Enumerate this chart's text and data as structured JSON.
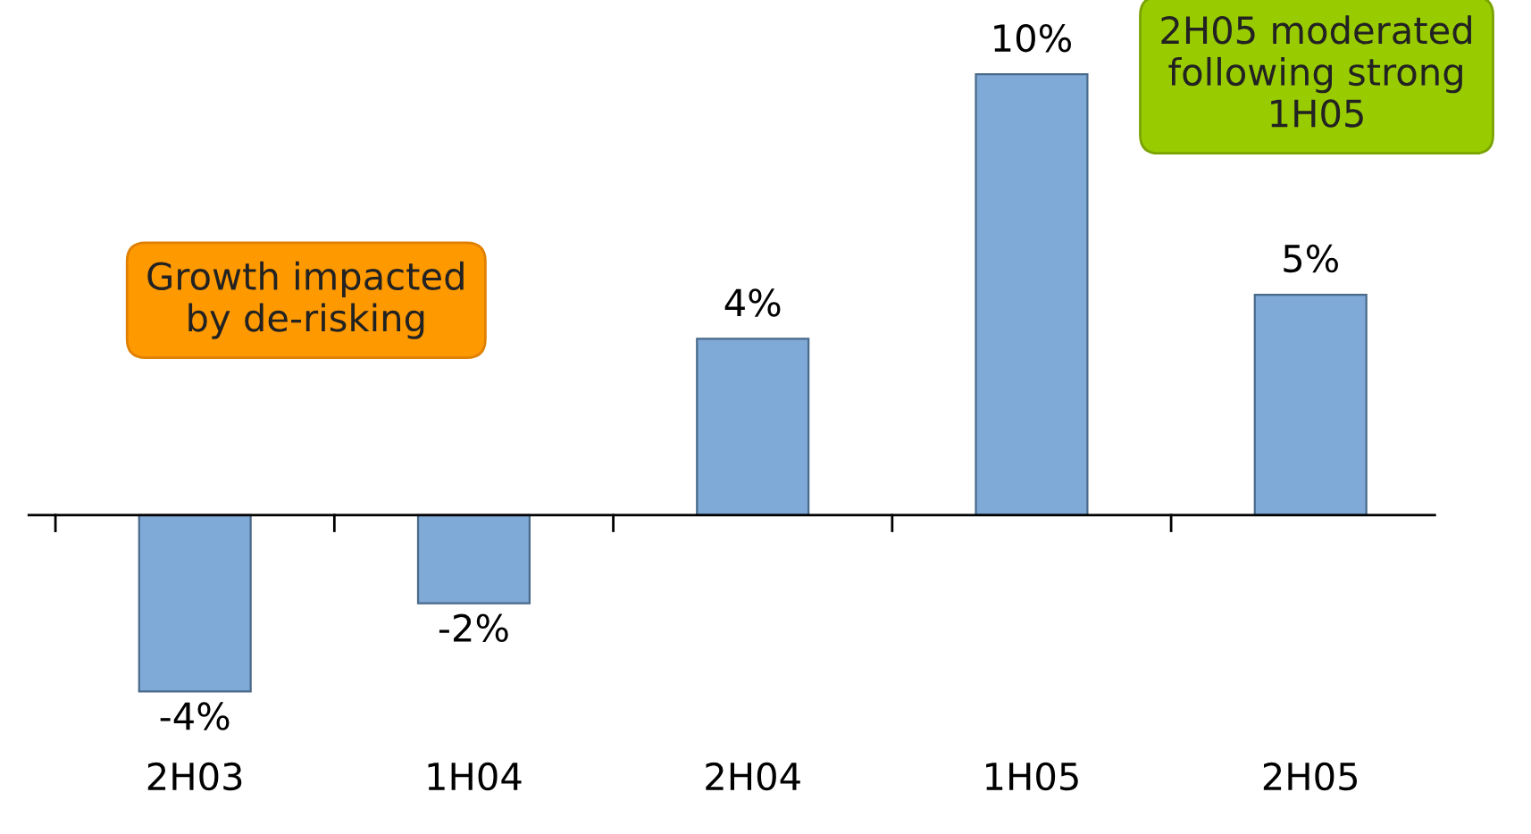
{
  "chart_data": {
    "type": "bar",
    "categories": [
      "2H03",
      "1H04",
      "2H04",
      "1H05",
      "2H05"
    ],
    "values": [
      -4,
      -2,
      4,
      10,
      5
    ],
    "value_labels": [
      "-4%",
      "-2%",
      "4%",
      "10%",
      "5%"
    ],
    "color": "#7fa9d6",
    "grid": false,
    "legend": false,
    "annotations": [
      "Growth impacted\nby de-risking",
      "2H05 moderated\nfollowing strong\n1H05"
    ]
  }
}
